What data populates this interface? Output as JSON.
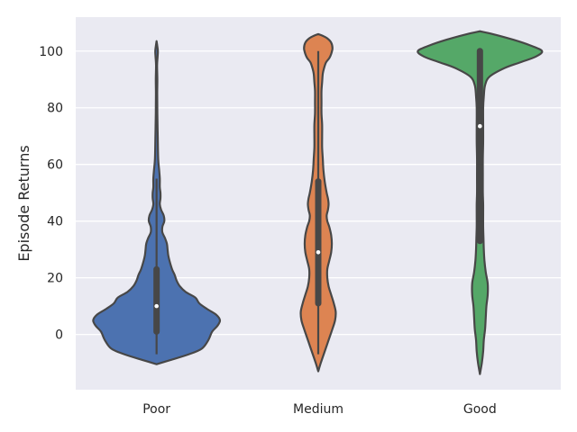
{
  "chart_data": {
    "type": "violin",
    "title": "",
    "xlabel": "",
    "ylabel": "Episode Returns",
    "ylim": [
      -19.5,
      112
    ],
    "yticks": [
      0,
      20,
      40,
      60,
      80,
      100
    ],
    "grid": true,
    "categories": [
      "Poor",
      "Medium",
      "Good"
    ],
    "colors": [
      "#4c72b0",
      "#dd8452",
      "#55a868"
    ],
    "violins": [
      {
        "category": "Poor",
        "median": 10,
        "q1": 1,
        "q3": 23,
        "whisker_low": -7,
        "whisker_high": 55,
        "density": [
          [
            -10.5,
            0
          ],
          [
            -9,
            0.22
          ],
          [
            -7,
            0.5
          ],
          [
            -5,
            0.7
          ],
          [
            -2,
            0.8
          ],
          [
            1,
            0.86
          ],
          [
            3,
            0.94
          ],
          [
            5,
            0.98
          ],
          [
            7,
            0.92
          ],
          [
            9,
            0.78
          ],
          [
            11,
            0.66
          ],
          [
            13,
            0.6
          ],
          [
            15,
            0.45
          ],
          [
            17,
            0.36
          ],
          [
            19,
            0.31
          ],
          [
            21,
            0.28
          ],
          [
            23,
            0.24
          ],
          [
            26,
            0.2
          ],
          [
            28,
            0.18
          ],
          [
            30,
            0.17
          ],
          [
            32,
            0.16
          ],
          [
            34,
            0.13
          ],
          [
            36,
            0.09
          ],
          [
            38,
            0.09
          ],
          [
            40,
            0.12
          ],
          [
            42,
            0.11
          ],
          [
            44,
            0.07
          ],
          [
            46,
            0.05
          ],
          [
            48,
            0.06
          ],
          [
            50,
            0.06
          ],
          [
            52,
            0.05
          ],
          [
            55,
            0.05
          ],
          [
            58,
            0.04
          ],
          [
            62,
            0.025
          ],
          [
            70,
            0.018
          ],
          [
            78,
            0.012
          ],
          [
            85,
            0.01
          ],
          [
            90,
            0.012
          ],
          [
            95,
            0.008
          ],
          [
            98,
            0.016
          ],
          [
            100,
            0.02
          ],
          [
            102,
            0.01
          ],
          [
            103.5,
            0
          ]
        ]
      },
      {
        "category": "Medium",
        "median": 29,
        "q1": 11,
        "q3": 54,
        "whisker_low": -7,
        "whisker_high": 100,
        "density": [
          [
            -13,
            0
          ],
          [
            -10,
            0.04
          ],
          [
            -6,
            0.1
          ],
          [
            -2,
            0.16
          ],
          [
            2,
            0.22
          ],
          [
            5,
            0.26
          ],
          [
            8,
            0.27
          ],
          [
            11,
            0.24
          ],
          [
            14,
            0.2
          ],
          [
            17,
            0.16
          ],
          [
            20,
            0.14
          ],
          [
            23,
            0.14
          ],
          [
            26,
            0.17
          ],
          [
            29,
            0.2
          ],
          [
            32,
            0.21
          ],
          [
            35,
            0.2
          ],
          [
            38,
            0.17
          ],
          [
            40,
            0.14
          ],
          [
            42,
            0.13
          ],
          [
            44,
            0.15
          ],
          [
            46,
            0.16
          ],
          [
            48,
            0.15
          ],
          [
            50,
            0.13
          ],
          [
            54,
            0.1
          ],
          [
            58,
            0.08
          ],
          [
            62,
            0.07
          ],
          [
            66,
            0.06
          ],
          [
            70,
            0.06
          ],
          [
            74,
            0.06
          ],
          [
            78,
            0.05
          ],
          [
            82,
            0.05
          ],
          [
            86,
            0.05
          ],
          [
            89,
            0.06
          ],
          [
            92,
            0.07
          ],
          [
            94,
            0.09
          ],
          [
            96,
            0.12
          ],
          [
            97.5,
            0.17
          ],
          [
            99,
            0.2
          ],
          [
            101,
            0.22
          ],
          [
            103,
            0.2
          ],
          [
            104.5,
            0.14
          ],
          [
            105.5,
            0.06
          ],
          [
            106,
            0
          ]
        ]
      },
      {
        "category": "Good",
        "median": 73.5,
        "q1": 33,
        "q3": 100,
        "whisker_low": 33,
        "whisker_high": 100,
        "density": [
          [
            -14,
            0
          ],
          [
            -10,
            0.03
          ],
          [
            -6,
            0.05
          ],
          [
            -2,
            0.06
          ],
          [
            2,
            0.08
          ],
          [
            6,
            0.09
          ],
          [
            10,
            0.1
          ],
          [
            14,
            0.12
          ],
          [
            18,
            0.12
          ],
          [
            22,
            0.09
          ],
          [
            26,
            0.07
          ],
          [
            30,
            0.06
          ],
          [
            34,
            0.055
          ],
          [
            38,
            0.05
          ],
          [
            42,
            0.05
          ],
          [
            46,
            0.05
          ],
          [
            50,
            0.045
          ],
          [
            56,
            0.045
          ],
          [
            62,
            0.045
          ],
          [
            68,
            0.05
          ],
          [
            74,
            0.05
          ],
          [
            80,
            0.05
          ],
          [
            84,
            0.06
          ],
          [
            88,
            0.08
          ],
          [
            91,
            0.15
          ],
          [
            94,
            0.38
          ],
          [
            96,
            0.62
          ],
          [
            98,
            0.86
          ],
          [
            100,
            0.96
          ],
          [
            102,
            0.78
          ],
          [
            104,
            0.52
          ],
          [
            106,
            0.2
          ],
          [
            107,
            0
          ]
        ]
      }
    ]
  }
}
